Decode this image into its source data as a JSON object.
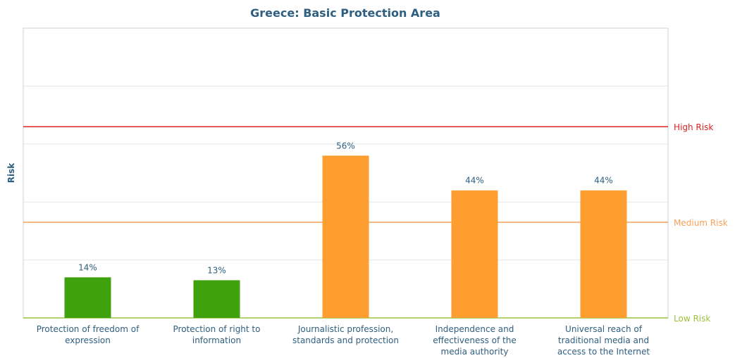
{
  "chart_data": {
    "type": "bar",
    "title": "Greece: Basic Protection Area",
    "xlabel": "",
    "ylabel": "Risk",
    "ylim": [
      0,
      100
    ],
    "grid": true,
    "categories": [
      "Protection of freedom of expression",
      "Protection of right to information",
      "Journalistic profession, standards and protection",
      "Independence and effectiveness of the media authority",
      "Universal reach of traditional media and access to the Internet"
    ],
    "category_lines": [
      [
        "Protection of freedom of",
        "expression"
      ],
      [
        "Protection of right to",
        "information"
      ],
      [
        "Journalistic profession,",
        "standards and protection"
      ],
      [
        "Independence and",
        "effectiveness of the",
        "media authority"
      ],
      [
        "Universal reach of",
        "traditional media and",
        "access to the Internet"
      ]
    ],
    "values": [
      14,
      13,
      56,
      44,
      44
    ],
    "value_labels": [
      "14%",
      "13%",
      "56%",
      "44%",
      "44%"
    ],
    "bar_colors": [
      "#3fa10e",
      "#3fa10e",
      "#ff9e30",
      "#ff9e30",
      "#ff9e30"
    ],
    "thresholds": [
      {
        "label": "High Risk",
        "value": 66,
        "color": "#e02020"
      },
      {
        "label": "Medium Risk",
        "value": 33,
        "color": "#f5a15a"
      },
      {
        "label": "Low Risk",
        "value": 0,
        "color": "#9ac23c"
      }
    ],
    "colors": {
      "text": "#2e5f80",
      "grid": "#e4e8ec",
      "frame": "#c8d3dc"
    }
  }
}
